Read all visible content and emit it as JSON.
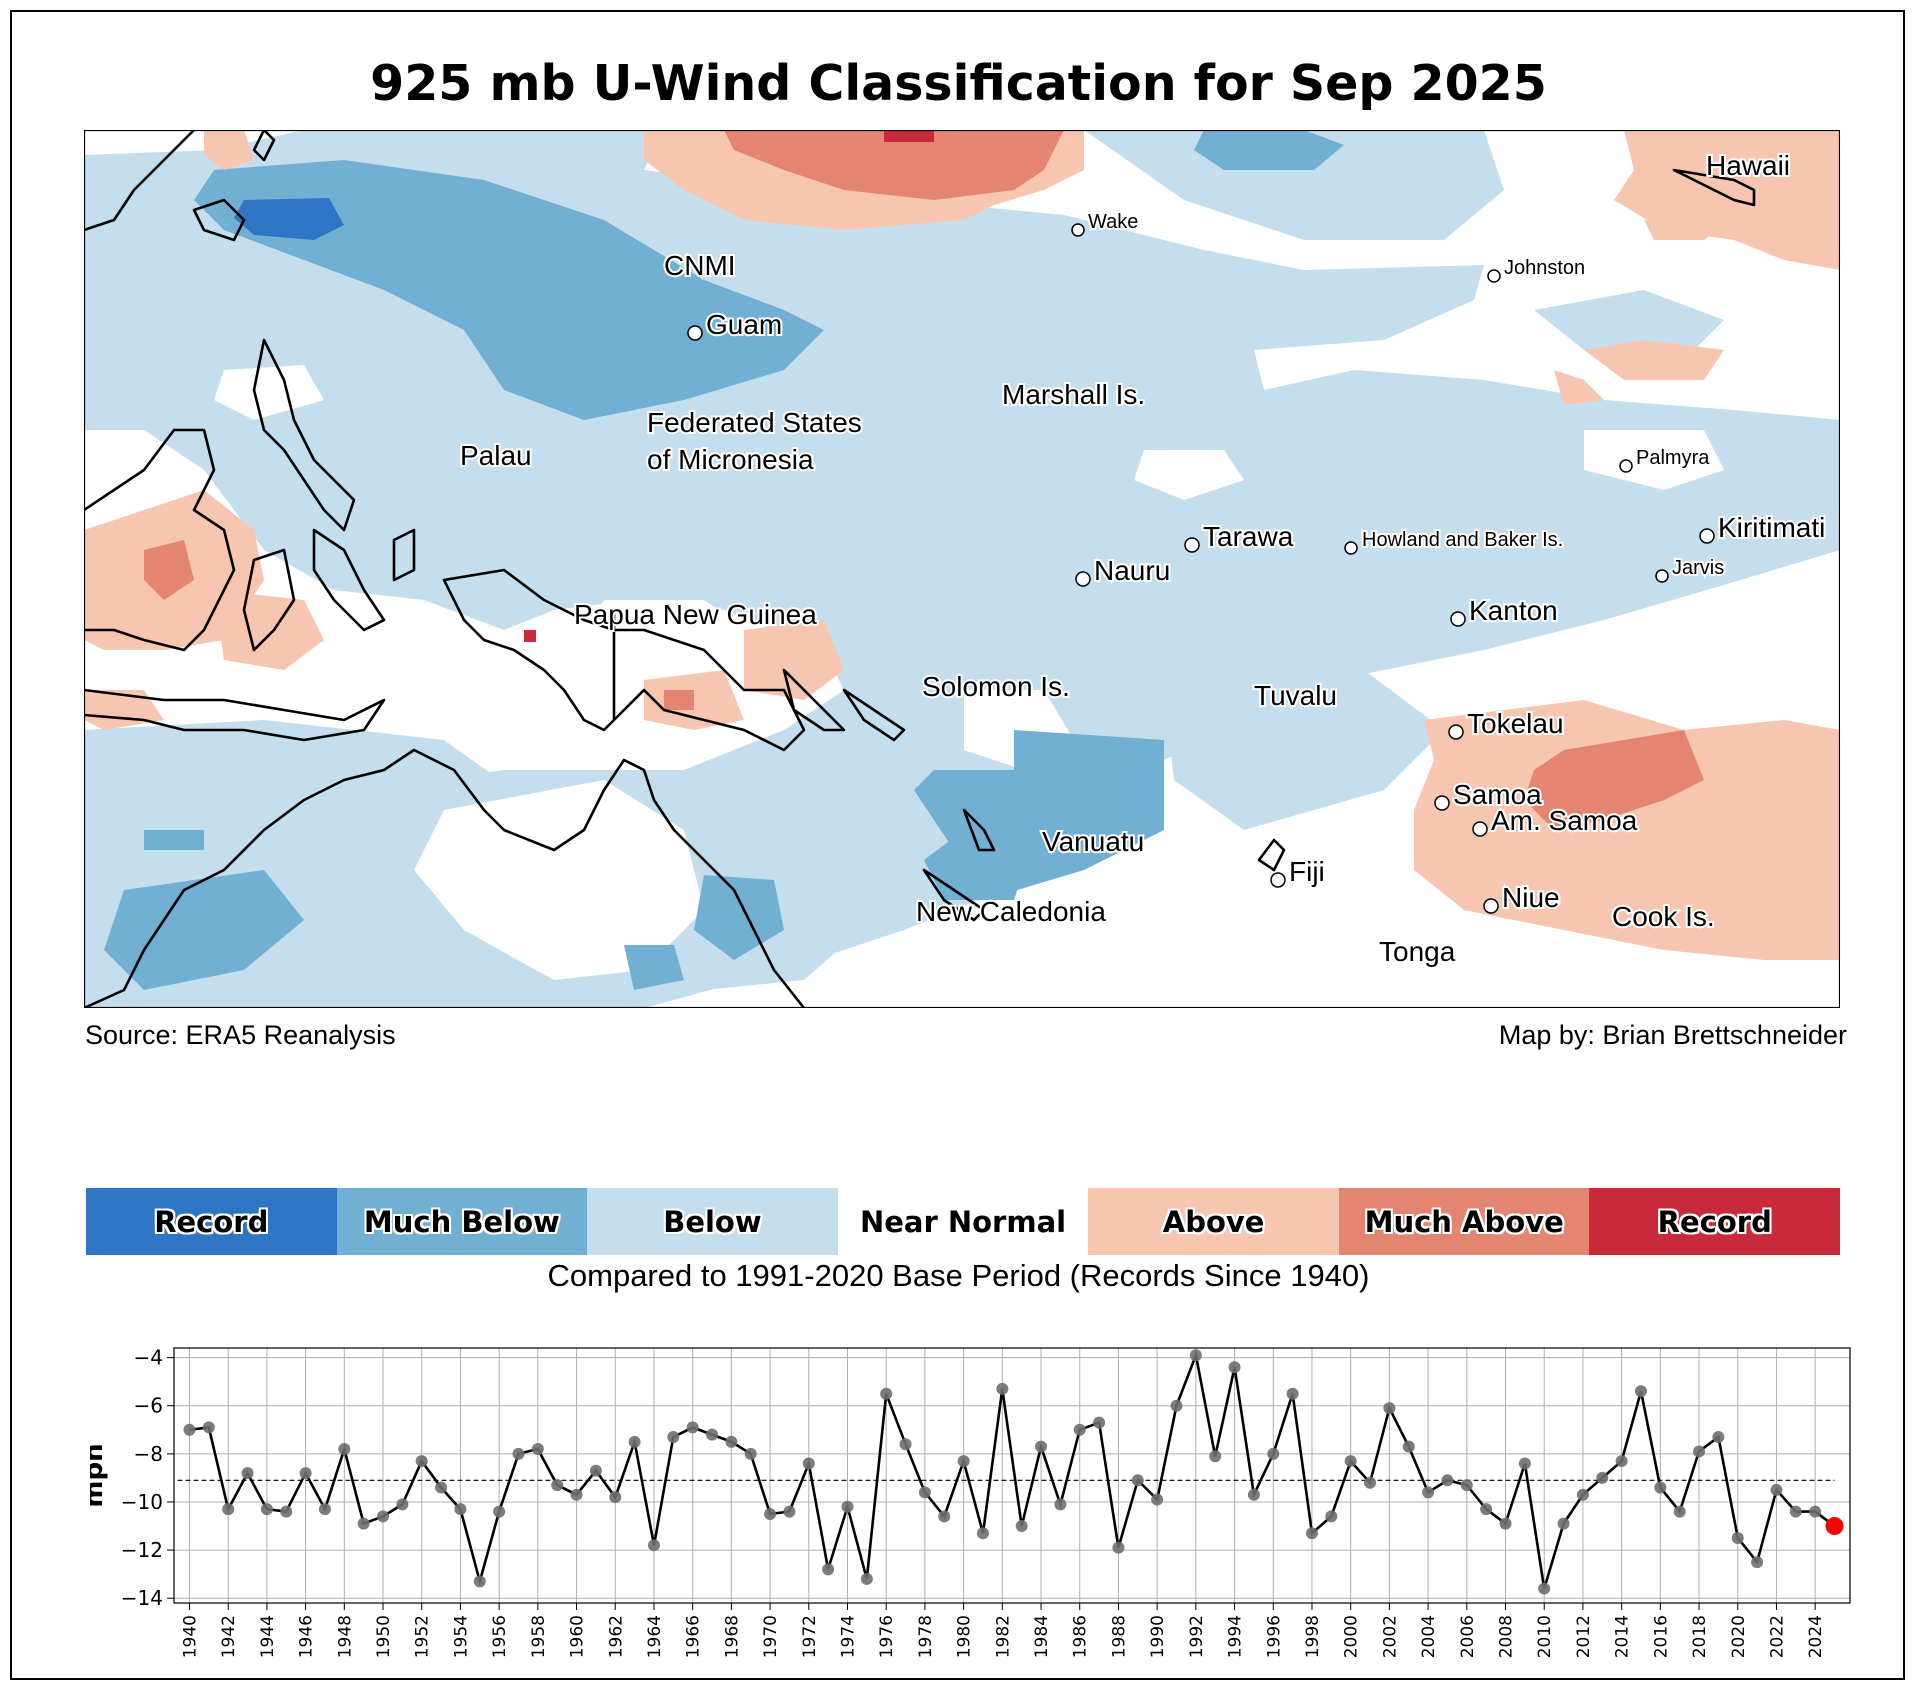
{
  "title": "925 mb U-Wind Classification for Sep 2025",
  "footer": {
    "source": "Source: ERA5 Reanalysis",
    "credit": "Map by: Brian Brettschneider"
  },
  "colors": {
    "record_low": "#2e75c5",
    "much_below": "#71afd3",
    "below": "#c5deed",
    "near_normal": "#ffffff",
    "above": "#f7c6b1",
    "much_above": "#e48571",
    "record_high": "#c8293b",
    "land_outline": "#000000",
    "current_point": "#ff0000"
  },
  "map": {
    "labels": [
      {
        "id": "hawaii",
        "text": "Hawaii",
        "size": "large",
        "marker": false
      },
      {
        "id": "wake",
        "text": "Wake",
        "size": "small",
        "marker": true
      },
      {
        "id": "johnston",
        "text": "Johnston",
        "size": "small",
        "marker": true
      },
      {
        "id": "cnmi",
        "text": "CNMI",
        "size": "large",
        "marker": false
      },
      {
        "id": "guam",
        "text": "Guam",
        "size": "large",
        "marker": true
      },
      {
        "id": "marshall",
        "text": "Marshall Is.",
        "size": "large",
        "marker": false
      },
      {
        "id": "fsm1",
        "text": "Federated States",
        "size": "large",
        "marker": false
      },
      {
        "id": "fsm2",
        "text": "of Micronesia",
        "size": "large",
        "marker": false
      },
      {
        "id": "palau",
        "text": "Palau",
        "size": "large",
        "marker": false
      },
      {
        "id": "palmyra",
        "text": "Palmyra",
        "size": "small",
        "marker": true
      },
      {
        "id": "tarawa",
        "text": "Tarawa",
        "size": "large",
        "marker": true
      },
      {
        "id": "howland",
        "text": "Howland and Baker Is.",
        "size": "small",
        "marker": true
      },
      {
        "id": "kiritimati",
        "text": "Kiritimati",
        "size": "large",
        "marker": true
      },
      {
        "id": "nauru",
        "text": "Nauru",
        "size": "large",
        "marker": true
      },
      {
        "id": "jarvis",
        "text": "Jarvis",
        "size": "small",
        "marker": true
      },
      {
        "id": "kanton",
        "text": "Kanton",
        "size": "large",
        "marker": true
      },
      {
        "id": "png",
        "text": "Papua New Guinea",
        "size": "large",
        "marker": false
      },
      {
        "id": "solomon",
        "text": "Solomon Is.",
        "size": "large",
        "marker": false
      },
      {
        "id": "tuvalu",
        "text": "Tuvalu",
        "size": "large",
        "marker": false
      },
      {
        "id": "tokelau",
        "text": "Tokelau",
        "size": "large",
        "marker": true
      },
      {
        "id": "samoa",
        "text": "Samoa",
        "size": "large",
        "marker": true
      },
      {
        "id": "amsamoa",
        "text": "Am. Samoa",
        "size": "large",
        "marker": true
      },
      {
        "id": "vanuatu",
        "text": "Vanuatu",
        "size": "large",
        "marker": false
      },
      {
        "id": "fiji",
        "text": "Fiji",
        "size": "large",
        "marker": true
      },
      {
        "id": "newcal",
        "text": "New Caledonia",
        "size": "large",
        "marker": false
      },
      {
        "id": "niue",
        "text": "Niue",
        "size": "large",
        "marker": true
      },
      {
        "id": "cook",
        "text": "Cook Is.",
        "size": "large",
        "marker": false
      },
      {
        "id": "tonga",
        "text": "Tonga",
        "size": "large",
        "marker": false
      }
    ]
  },
  "legend": {
    "items": [
      "Record",
      "Much Below",
      "Below",
      "Near Normal",
      "Above",
      "Much Above",
      "Record"
    ],
    "caption": "Compared to 1991-2020 Base Period   (Records Since 1940)"
  },
  "chart_data": {
    "type": "line",
    "ylabel": "mph",
    "xlabel": "",
    "ylim": [
      -14.2,
      -3.6
    ],
    "yticks": [
      -4,
      -6,
      -8,
      -10,
      -12,
      -14
    ],
    "xticks": [
      1940,
      1942,
      1944,
      1946,
      1948,
      1950,
      1952,
      1954,
      1956,
      1958,
      1960,
      1962,
      1964,
      1966,
      1968,
      1970,
      1972,
      1974,
      1976,
      1978,
      1980,
      1982,
      1984,
      1986,
      1988,
      1990,
      1992,
      1994,
      1996,
      1998,
      2000,
      2002,
      2004,
      2006,
      2008,
      2010,
      2012,
      2014,
      2016,
      2018,
      2020,
      2022,
      2024
    ],
    "grid": true,
    "mean_line": -9.1,
    "x": [
      1940,
      1941,
      1942,
      1943,
      1944,
      1945,
      1946,
      1947,
      1948,
      1949,
      1950,
      1951,
      1952,
      1953,
      1954,
      1955,
      1956,
      1957,
      1958,
      1959,
      1960,
      1961,
      1962,
      1963,
      1964,
      1965,
      1966,
      1967,
      1968,
      1969,
      1970,
      1971,
      1972,
      1973,
      1974,
      1975,
      1976,
      1977,
      1978,
      1979,
      1980,
      1981,
      1982,
      1983,
      1984,
      1985,
      1986,
      1987,
      1988,
      1989,
      1990,
      1991,
      1992,
      1993,
      1994,
      1995,
      1996,
      1997,
      1998,
      1999,
      2000,
      2001,
      2002,
      2003,
      2004,
      2005,
      2006,
      2007,
      2008,
      2009,
      2010,
      2011,
      2012,
      2013,
      2014,
      2015,
      2016,
      2017,
      2018,
      2019,
      2020,
      2021,
      2022,
      2023,
      2024,
      2025
    ],
    "values": [
      -7.0,
      -6.9,
      -10.3,
      -8.8,
      -10.3,
      -10.4,
      -8.8,
      -10.3,
      -7.8,
      -10.9,
      -10.6,
      -10.1,
      -8.3,
      -9.4,
      -10.3,
      -13.3,
      -10.4,
      -8.0,
      -7.8,
      -9.3,
      -9.7,
      -8.7,
      -9.8,
      -7.5,
      -11.8,
      -7.3,
      -6.9,
      -7.2,
      -7.5,
      -8.0,
      -10.5,
      -10.4,
      -8.4,
      -12.8,
      -10.2,
      -13.2,
      -5.5,
      -7.6,
      -9.6,
      -10.6,
      -8.3,
      -11.3,
      -5.3,
      -11.0,
      -7.7,
      -10.1,
      -7.0,
      -6.7,
      -11.9,
      -9.1,
      -9.9,
      -6.0,
      -3.9,
      -8.1,
      -4.4,
      -9.7,
      -8.0,
      -5.5,
      -11.3,
      -10.6,
      -8.3,
      -9.2,
      -6.1,
      -7.7,
      -9.6,
      -9.1,
      -9.3,
      -10.3,
      -10.9,
      -8.4,
      -13.6,
      -10.9,
      -9.7,
      -9.0,
      -8.3,
      -5.4,
      -9.4,
      -10.4,
      -7.9,
      -7.3,
      -11.5,
      -12.5,
      -9.5,
      -10.4,
      -10.4,
      -11.0
    ],
    "highlight_last": true
  }
}
